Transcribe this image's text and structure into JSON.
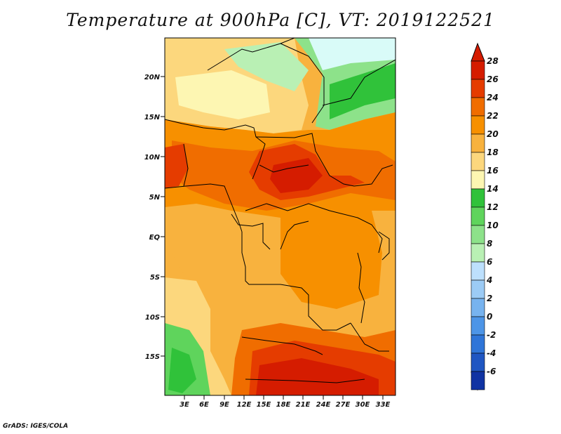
{
  "title": "Temperature at 900hPa [C], VT: 2019122521",
  "footer": "GrADS: IGES/COLA",
  "lat_labels": [
    "20N",
    "15N",
    "10N",
    "5N",
    "EQ",
    "5S",
    "10S",
    "15S"
  ],
  "lon_labels": [
    "3E",
    "6E",
    "9E",
    "12E",
    "15E",
    "18E",
    "21E",
    "24E",
    "27E",
    "30E",
    "33E"
  ],
  "colorbar": {
    "labels": [
      "28",
      "26",
      "24",
      "22",
      "20",
      "18",
      "16",
      "14",
      "12",
      "10",
      "8",
      "6",
      "4",
      "2",
      "0",
      "-2",
      "-4",
      "-6"
    ],
    "colors": [
      "#d51c00",
      "#e53c00",
      "#f06d00",
      "#f79000",
      "#f8b23e",
      "#fcd77d",
      "#fdf6b2",
      "#30c23a",
      "#5fd45c",
      "#8de28a",
      "#b9f0b4",
      "#bde0fd",
      "#9ccbf5",
      "#77b3ef",
      "#4d95e7",
      "#2f75d8",
      "#1f56c2",
      "#1033a3",
      "#0b1f7a"
    ],
    "top_arrow_color": "#d51c00",
    "bottom_arrow_color": "#dcdcf5"
  }
}
